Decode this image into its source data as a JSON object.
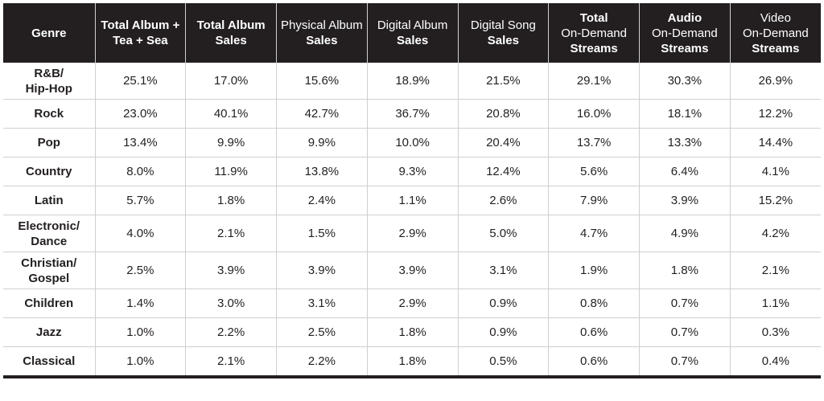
{
  "chart_data": {
    "type": "table",
    "columns": [
      {
        "label_lines": [
          "Genre"
        ],
        "weight": "bold"
      },
      {
        "label_lines": [
          "Total Album +",
          "Tea + Sea"
        ],
        "weight": "bold"
      },
      {
        "label_lines": [
          "Total Album",
          "Sales"
        ],
        "weight": "bold"
      },
      {
        "label_lines": [
          "Physical Album",
          "Sales"
        ],
        "weight": "mixed"
      },
      {
        "label_lines": [
          "Digital Album",
          "Sales"
        ],
        "weight": "mixed"
      },
      {
        "label_lines": [
          "Digital Song",
          "Sales"
        ],
        "weight": "mixed"
      },
      {
        "label_lines": [
          "Total",
          "On-Demand",
          "Streams"
        ],
        "weight": "mixed"
      },
      {
        "label_lines": [
          "Audio",
          "On-Demand",
          "Streams"
        ],
        "weight": "mixed"
      },
      {
        "label_lines": [
          "Video",
          "On-Demand",
          "Streams"
        ],
        "weight": "mixed"
      }
    ],
    "rows": [
      {
        "genre_lines": [
          "R&B/",
          "Hip-Hop"
        ],
        "values": [
          "25.1%",
          "17.0%",
          "15.6%",
          "18.9%",
          "21.5%",
          "29.1%",
          "30.3%",
          "26.9%"
        ]
      },
      {
        "genre_lines": [
          "Rock"
        ],
        "values": [
          "23.0%",
          "40.1%",
          "42.7%",
          "36.7%",
          "20.8%",
          "16.0%",
          "18.1%",
          "12.2%"
        ]
      },
      {
        "genre_lines": [
          "Pop"
        ],
        "values": [
          "13.4%",
          "9.9%",
          "9.9%",
          "10.0%",
          "20.4%",
          "13.7%",
          "13.3%",
          "14.4%"
        ]
      },
      {
        "genre_lines": [
          "Country"
        ],
        "values": [
          "8.0%",
          "11.9%",
          "13.8%",
          "9.3%",
          "12.4%",
          "5.6%",
          "6.4%",
          "4.1%"
        ]
      },
      {
        "genre_lines": [
          "Latin"
        ],
        "values": [
          "5.7%",
          "1.8%",
          "2.4%",
          "1.1%",
          "2.6%",
          "7.9%",
          "3.9%",
          "15.2%"
        ]
      },
      {
        "genre_lines": [
          "Electronic/",
          "Dance"
        ],
        "values": [
          "4.0%",
          "2.1%",
          "1.5%",
          "2.9%",
          "5.0%",
          "4.7%",
          "4.9%",
          "4.2%"
        ]
      },
      {
        "genre_lines": [
          "Christian/",
          "Gospel"
        ],
        "values": [
          "2.5%",
          "3.9%",
          "3.9%",
          "3.9%",
          "3.1%",
          "1.9%",
          "1.8%",
          "2.1%"
        ]
      },
      {
        "genre_lines": [
          "Children"
        ],
        "values": [
          "1.4%",
          "3.0%",
          "3.1%",
          "2.9%",
          "0.9%",
          "0.8%",
          "0.7%",
          "1.1%"
        ]
      },
      {
        "genre_lines": [
          "Jazz"
        ],
        "values": [
          "1.0%",
          "2.2%",
          "2.5%",
          "1.8%",
          "0.9%",
          "0.6%",
          "0.7%",
          "0.3%"
        ]
      },
      {
        "genre_lines": [
          "Classical"
        ],
        "values": [
          "1.0%",
          "2.1%",
          "2.2%",
          "1.8%",
          "0.5%",
          "0.6%",
          "0.7%",
          "0.4%"
        ]
      }
    ]
  },
  "colors": {
    "header_bg": "#231f20",
    "header_text": "#ffffff",
    "cell_text": "#231f20",
    "grid": "#cfcfcf"
  }
}
